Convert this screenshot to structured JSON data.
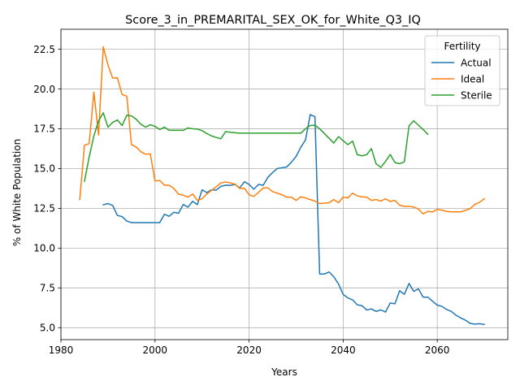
{
  "chart_data": {
    "type": "line",
    "title": "Score_3_in_PREMARITAL_SEX_OK_for_White_Q3_IQ",
    "xlabel": "Years",
    "ylabel": "% of White Population",
    "xlim": [
      1980,
      2075
    ],
    "ylim": [
      4.25,
      23.75
    ],
    "xticks": [
      1980,
      2000,
      2020,
      2040,
      2060
    ],
    "xtick_labels": [
      "1980",
      "2000",
      "2020",
      "2040",
      "2060"
    ],
    "yticks": [
      5.0,
      7.5,
      10.0,
      12.5,
      15.0,
      17.5,
      20.0,
      22.5
    ],
    "ytick_labels": [
      "5.0",
      "7.5",
      "10.0",
      "12.5",
      "15.0",
      "17.5",
      "20.0",
      "22.5"
    ],
    "grid": true,
    "legend": {
      "title": "Fertility",
      "position": "top-right"
    },
    "series": [
      {
        "name": "Actual",
        "color": "#1f77b4",
        "x": [
          1989,
          1990,
          1991,
          1992,
          1993,
          1994,
          1995,
          1996,
          1997,
          1998,
          1999,
          2000,
          2001,
          2002,
          2003,
          2004,
          2005,
          2006,
          2007,
          2008,
          2009,
          2010,
          2011,
          2012,
          2013,
          2014,
          2015,
          2016,
          2017,
          2018,
          2019,
          2020,
          2021,
          2022,
          2023,
          2024,
          2025,
          2026,
          2027,
          2028,
          2029,
          2030,
          2031,
          2032,
          2033,
          2034,
          2035,
          2036,
          2037,
          2038,
          2039,
          2040,
          2041,
          2042,
          2043,
          2044,
          2045,
          2046,
          2047,
          2048,
          2049,
          2050,
          2051,
          2052,
          2053,
          2054,
          2055,
          2056,
          2057,
          2058,
          2059,
          2060,
          2061,
          2062,
          2063,
          2064,
          2065,
          2066,
          2067,
          2068,
          2069,
          2070
        ],
        "values": [
          12.72,
          12.8,
          12.68,
          12.05,
          11.98,
          11.7,
          11.6,
          11.6,
          11.6,
          11.6,
          11.6,
          11.6,
          11.6,
          12.13,
          12.0,
          12.25,
          12.19,
          12.74,
          12.57,
          12.94,
          12.73,
          13.66,
          13.49,
          13.66,
          13.64,
          13.88,
          13.95,
          13.94,
          14.0,
          13.78,
          14.17,
          14.0,
          13.7,
          14.0,
          13.95,
          14.45,
          14.75,
          15.0,
          15.05,
          15.1,
          15.4,
          15.76,
          16.34,
          16.8,
          18.39,
          18.26,
          8.37,
          8.37,
          8.5,
          8.2,
          7.75,
          7.09,
          6.87,
          6.75,
          6.44,
          6.38,
          6.11,
          6.18,
          6.02,
          6.12,
          5.98,
          6.55,
          6.5,
          7.32,
          7.1,
          7.78,
          7.28,
          7.44,
          6.92,
          6.92,
          6.66,
          6.42,
          6.34,
          6.14,
          6.02,
          5.78,
          5.61,
          5.47,
          5.27,
          5.22,
          5.25,
          5.2
        ]
      },
      {
        "name": "Ideal",
        "color": "#ff7f0e",
        "x": [
          1984,
          1985,
          1986,
          1987,
          1988,
          1989,
          1990,
          1991,
          1992,
          1993,
          1994,
          1995,
          1996,
          1997,
          1998,
          1999,
          2000,
          2001,
          2002,
          2003,
          2004,
          2005,
          2006,
          2007,
          2008,
          2009,
          2010,
          2011,
          2012,
          2013,
          2014,
          2015,
          2016,
          2017,
          2018,
          2019,
          2020,
          2021,
          2022,
          2023,
          2024,
          2025,
          2026,
          2027,
          2028,
          2029,
          2030,
          2031,
          2032,
          2033,
          2034,
          2035,
          2036,
          2037,
          2038,
          2039,
          2040,
          2041,
          2042,
          2043,
          2044,
          2045,
          2046,
          2047,
          2048,
          2049,
          2050,
          2051,
          2052,
          2053,
          2054,
          2055,
          2056,
          2057,
          2058,
          2059,
          2060,
          2061,
          2062,
          2063,
          2064,
          2065,
          2066,
          2067,
          2068,
          2069,
          2070
        ],
        "values": [
          13.05,
          16.46,
          16.56,
          19.8,
          17.1,
          22.65,
          21.5,
          20.68,
          20.7,
          19.65,
          19.55,
          16.5,
          16.35,
          16.05,
          15.9,
          15.92,
          14.22,
          14.25,
          13.95,
          13.95,
          13.75,
          13.38,
          13.33,
          13.2,
          13.4,
          13.0,
          13.1,
          13.4,
          13.62,
          13.85,
          14.1,
          14.15,
          14.1,
          14.02,
          13.75,
          13.76,
          13.35,
          13.25,
          13.5,
          13.78,
          13.78,
          13.55,
          13.45,
          13.35,
          13.2,
          13.2,
          13.0,
          13.22,
          13.15,
          13.05,
          12.95,
          12.8,
          12.82,
          12.85,
          13.05,
          12.85,
          13.2,
          13.15,
          13.45,
          13.28,
          13.22,
          13.2,
          13.0,
          13.05,
          12.95,
          13.1,
          12.93,
          13.0,
          12.7,
          12.62,
          12.62,
          12.58,
          12.45,
          12.15,
          12.3,
          12.28,
          12.43,
          12.38,
          12.3,
          12.28,
          12.28,
          12.28,
          12.38,
          12.48,
          12.75,
          12.88,
          13.1
        ]
      },
      {
        "name": "Sterile",
        "color": "#2ca02c",
        "x": [
          1985,
          1986,
          1987,
          1988,
          1989,
          1990,
          1991,
          1992,
          1993,
          1994,
          1995,
          1996,
          1997,
          1998,
          1999,
          2000,
          2001,
          2002,
          2003,
          2004,
          2005,
          2006,
          2007,
          2008,
          2009,
          2010,
          2011,
          2012,
          2013,
          2014,
          2015,
          2016,
          2017,
          2018,
          2019,
          2020,
          2021,
          2022,
          2023,
          2024,
          2025,
          2026,
          2027,
          2028,
          2029,
          2030,
          2031,
          2032,
          2033,
          2034,
          2035,
          2036,
          2037,
          2038,
          2039,
          2040,
          2041,
          2042,
          2043,
          2044,
          2045,
          2046,
          2047,
          2048,
          2049,
          2050,
          2051,
          2052,
          2053,
          2054,
          2055,
          2056,
          2057,
          2058
        ],
        "values": [
          14.2,
          15.72,
          17.05,
          18.0,
          18.5,
          17.6,
          17.9,
          18.05,
          17.7,
          18.35,
          18.3,
          18.1,
          17.78,
          17.6,
          17.75,
          17.65,
          17.45,
          17.6,
          17.4,
          17.4,
          17.4,
          17.4,
          17.55,
          17.5,
          17.48,
          17.38,
          17.2,
          17.05,
          16.95,
          16.87,
          17.32,
          17.28,
          17.25,
          17.22,
          17.22,
          17.22,
          17.22,
          17.22,
          17.22,
          17.22,
          17.22,
          17.22,
          17.22,
          17.22,
          17.22,
          17.22,
          17.22,
          17.5,
          17.7,
          17.72,
          17.5,
          17.2,
          16.9,
          16.6,
          17.0,
          16.75,
          16.5,
          16.72,
          15.87,
          15.8,
          15.87,
          16.25,
          15.3,
          15.07,
          15.45,
          15.88,
          15.38,
          15.3,
          15.42,
          17.68,
          18.0,
          17.72,
          17.45,
          17.15
        ]
      }
    ]
  }
}
